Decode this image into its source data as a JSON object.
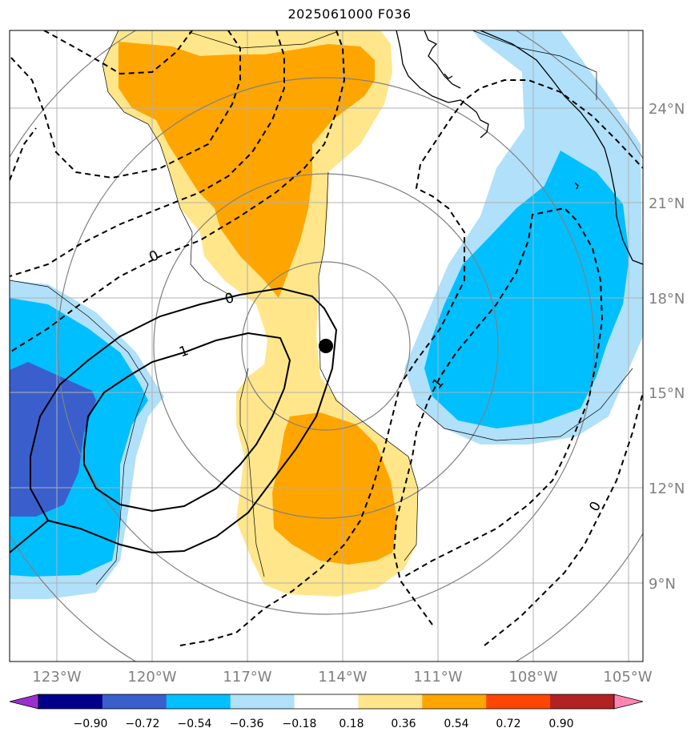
{
  "title": "2025061000 F036",
  "map": {
    "lat_labels": [
      "24°N",
      "21°N",
      "18°N",
      "15°N",
      "12°N",
      "9°N"
    ],
    "lon_labels": [
      "123°W",
      "120°W",
      "117°W",
      "114°W",
      "111°W",
      "108°W",
      "105°W"
    ],
    "contour_labels": [
      "0",
      "0",
      "1",
      "1",
      "0"
    ],
    "storm_center": {
      "lon": -114.5,
      "lat": 16.5
    }
  },
  "colorbar": {
    "ticks": [
      "−0.90",
      "−0.72",
      "−0.54",
      "−0.36",
      "−0.18",
      "0.18",
      "0.36",
      "0.54",
      "0.72",
      "0.90"
    ],
    "colors": [
      "#9b30d0",
      "#00008b",
      "#3a5fcd",
      "#00bfff",
      "#b0e0fa",
      "#ffffff",
      "#ffe68a",
      "#ffa500",
      "#ff4500",
      "#b22222",
      "#ff85b0"
    ]
  },
  "colors": {
    "light_blue": "#b0e0fa",
    "blue": "#00bfff",
    "dark_blue": "#3a5fcd",
    "light_yellow": "#ffe68a",
    "orange": "#ffa500",
    "grid": "#b0b0b0",
    "label_gray": "#808080"
  }
}
